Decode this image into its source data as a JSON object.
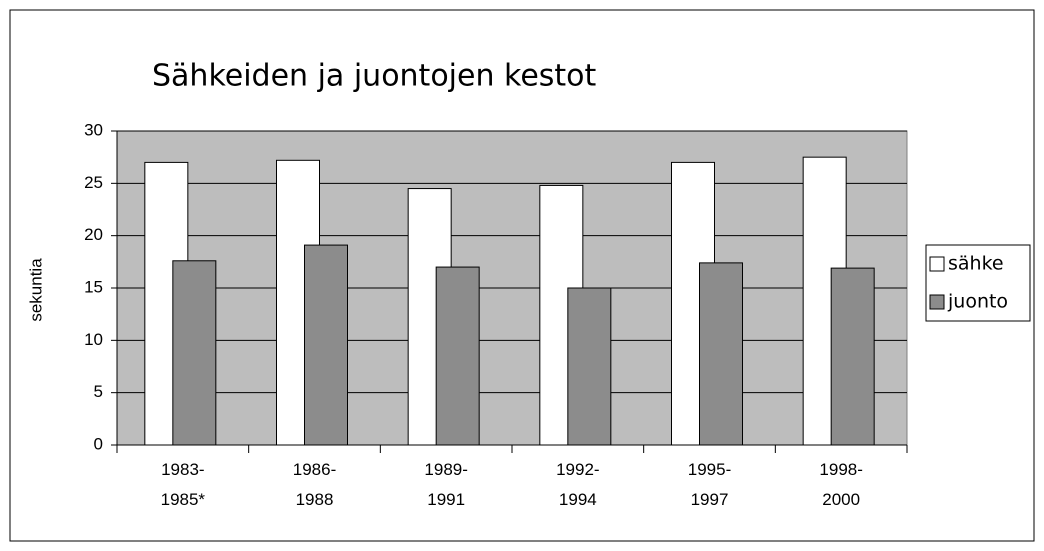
{
  "chart_data": {
    "type": "bar",
    "title": "Sähkeiden ja juontojen kestot",
    "y_label": "sekuntia",
    "categories": [
      "1983-\n1985*",
      "1986-\n1988",
      "1989-\n1991",
      "1992-\n1994",
      "1995-\n1997",
      "1998-\n2000"
    ],
    "series": [
      {
        "name": "sähke",
        "color": "#ffffff",
        "values": [
          27,
          27.2,
          24.5,
          24.8,
          27,
          27.5
        ]
      },
      {
        "name": "juonto",
        "color": "#8c8c8c",
        "values": [
          17.6,
          19.1,
          17,
          15,
          17.4,
          16.9
        ]
      }
    ],
    "ylim": [
      0,
      30
    ],
    "yticks": [
      0,
      5,
      10,
      15,
      20,
      25,
      30
    ],
    "grid": true,
    "legend": "right"
  }
}
